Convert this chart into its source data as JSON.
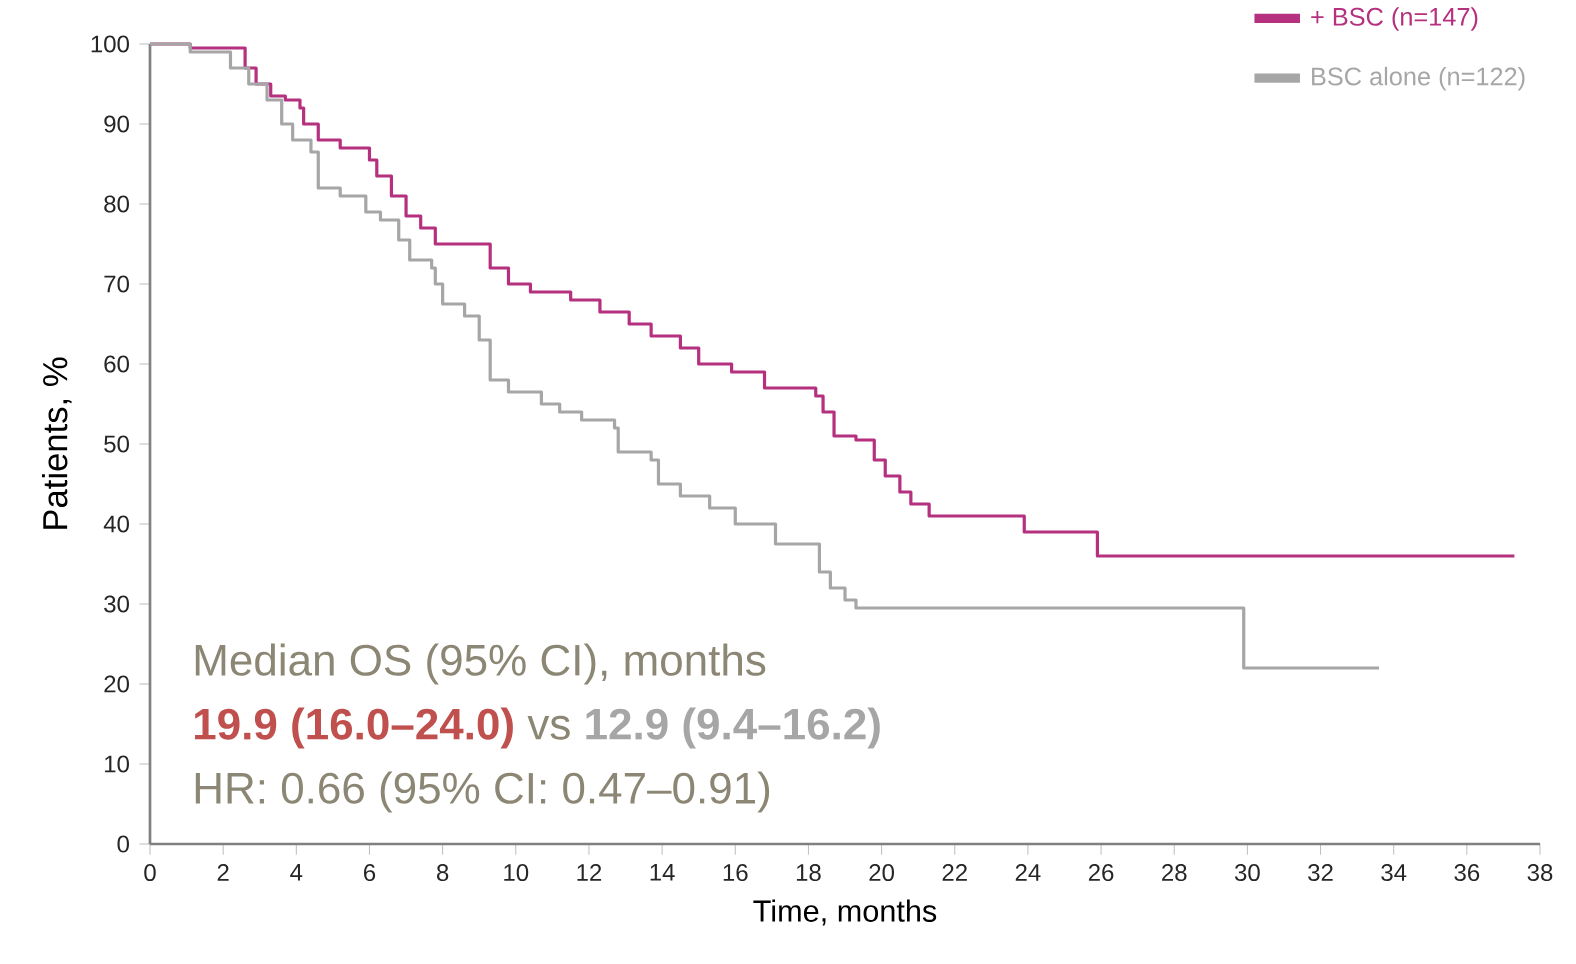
{
  "chart_data": {
    "type": "step",
    "xlabel": "Time, months",
    "ylabel": "Patients, %",
    "xlim": [
      0,
      38
    ],
    "ylim": [
      0,
      100
    ],
    "xticks": [
      0,
      2,
      4,
      6,
      8,
      10,
      12,
      14,
      16,
      18,
      20,
      22,
      24,
      26,
      28,
      30,
      32,
      34,
      36,
      38
    ],
    "yticks": [
      0,
      10,
      20,
      30,
      40,
      50,
      60,
      70,
      80,
      90,
      100
    ],
    "legend": "top right",
    "series": [
      {
        "name": "+ BSC (n=147)",
        "color": "#b5307f",
        "x": [
          0,
          1.1,
          2.6,
          2.9,
          3.3,
          3.7,
          4.1,
          4.2,
          4.6,
          5.2,
          6.0,
          6.2,
          6.6,
          7.0,
          7.4,
          7.8,
          9.3,
          9.8,
          10.4,
          11.5,
          12.3,
          13.1,
          13.7,
          14.5,
          15.0,
          15.9,
          16.8,
          18.2,
          18.4,
          18.7,
          19.3,
          19.8,
          20.1,
          20.5,
          20.8,
          21.3,
          23.9,
          25.9,
          37.3
        ],
        "values": [
          100,
          99.5,
          97,
          95,
          93.5,
          93,
          92,
          90,
          88,
          87,
          85.5,
          83.5,
          81,
          78.5,
          77,
          75,
          72,
          70,
          69,
          68,
          66.5,
          65,
          63.5,
          62,
          60,
          59,
          57,
          56,
          54,
          51,
          50.5,
          48,
          46,
          44,
          42.5,
          41,
          39,
          36,
          36
        ]
      },
      {
        "name": "BSC alone (n=122)",
        "color": "#a6a6a6",
        "x": [
          0,
          1.1,
          2.2,
          2.7,
          3.2,
          3.6,
          3.9,
          4.4,
          4.6,
          5.2,
          5.9,
          6.3,
          6.8,
          7.1,
          7.7,
          7.8,
          8.0,
          8.6,
          9.0,
          9.3,
          9.8,
          10.7,
          11.2,
          11.8,
          12.7,
          12.8,
          13.7,
          13.9,
          14.5,
          15.3,
          16.0,
          17.1,
          18.3,
          18.6,
          19.0,
          19.3,
          29.9,
          33.6
        ],
        "values": [
          100,
          99,
          97,
          95,
          93,
          90,
          88,
          86.5,
          82,
          81,
          79,
          78,
          75.5,
          73,
          72,
          70,
          67.5,
          66,
          63,
          58,
          56.5,
          55,
          54,
          53,
          52,
          49,
          48,
          45,
          43.5,
          42,
          40,
          37.5,
          34,
          32,
          30.5,
          29.5,
          22,
          22
        ]
      }
    ],
    "annotations": [
      "Median OS (95% CI), months",
      "19.9 (16.0–24.0)",
      "vs",
      "12.9 (9.4–16.2)",
      "HR: 0.66 (95% CI: 0.47–0.91)"
    ]
  }
}
